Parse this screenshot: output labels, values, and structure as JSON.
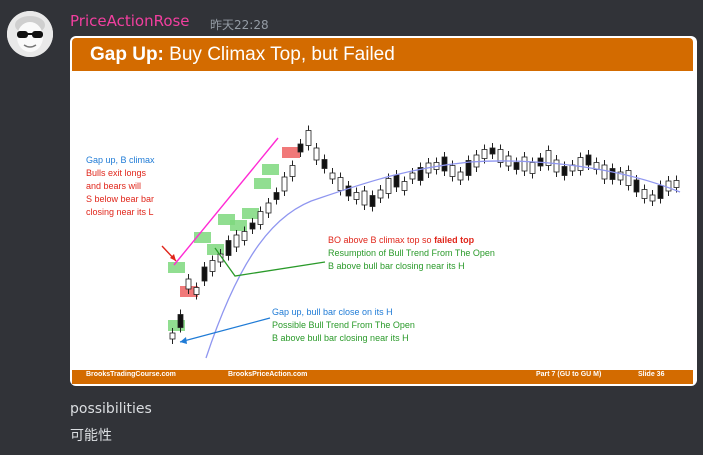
{
  "message": {
    "username": "PriceActionRose",
    "timestamp": "昨天22:28",
    "lines": [
      "possibilities",
      "可能性"
    ]
  },
  "slide": {
    "title_bold": "Gap Up:",
    "title_rest": " Buy Climax Top, but Failed",
    "footer": {
      "site1": "BrooksTradingCourse.com",
      "site2": "BrooksPriceAction.com",
      "part": "Part 7 (GU to GU M)",
      "slide": "Slide  36"
    },
    "annotations": {
      "left": [
        "Gap up, B climax",
        "Bulls exit longs",
        "and bears will",
        "S below bear bar",
        "closing near its L"
      ],
      "mid_red_prefix": "BO above B climax top so ",
      "mid_red_bold": "failed top",
      "mid_green": [
        "Resumption of Bull Trend From The Open",
        "B above bull bar closing near its H"
      ],
      "bottom_blue": "Gap up, bull bar close on its H",
      "bottom_green": [
        "Possible Bull Trend From The Open",
        "B above bull bar closing near its H"
      ]
    }
  },
  "colors": {
    "header": "#d36b00",
    "username": "#f23f9f",
    "ma_line": "#8f96f0",
    "highlight_green": "#7ed87e",
    "highlight_red": "#ef6161"
  }
}
